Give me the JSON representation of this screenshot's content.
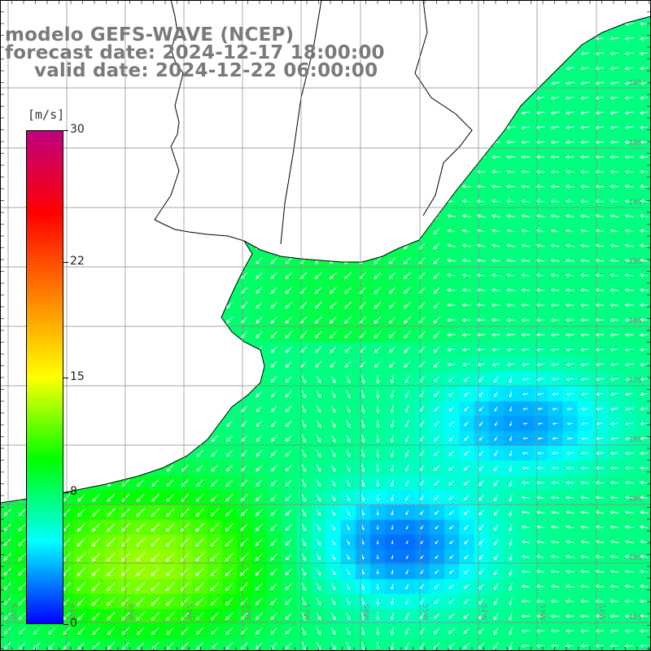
{
  "title": {
    "line1": "modelo GEFS-WAVE (NCEP)",
    "line2": "forecast date: 2024-12-17 18:00:00",
    "line3": "valid date: 2024-12-22 06:00:00"
  },
  "colorbar": {
    "units": "[m/s]",
    "min": 0,
    "max": 30,
    "tick_labels": [
      "30",
      "22",
      "15",
      "8",
      "0"
    ],
    "tick_values": [
      30,
      22,
      15,
      8,
      0
    ],
    "colors": [
      "#0000ff",
      "#00ffff",
      "#00ff00",
      "#ffff00",
      "#ff8000",
      "#ff0000",
      "#c00080"
    ]
  },
  "map": {
    "latitude_labels": [
      "32S",
      "33S",
      "34S",
      "35S",
      "36S",
      "37S",
      "38S",
      "39S",
      "40S",
      "41S"
    ],
    "longitude_labels": [
      "62W",
      "61W",
      "60W",
      "59W",
      "58W",
      "57W",
      "56W",
      "55W",
      "54W",
      "53W",
      "52W"
    ],
    "land_color": "#ffffff",
    "grid_color": "#888888",
    "arrow_color": "#ffffff",
    "variable": "wind speed and direction"
  }
}
